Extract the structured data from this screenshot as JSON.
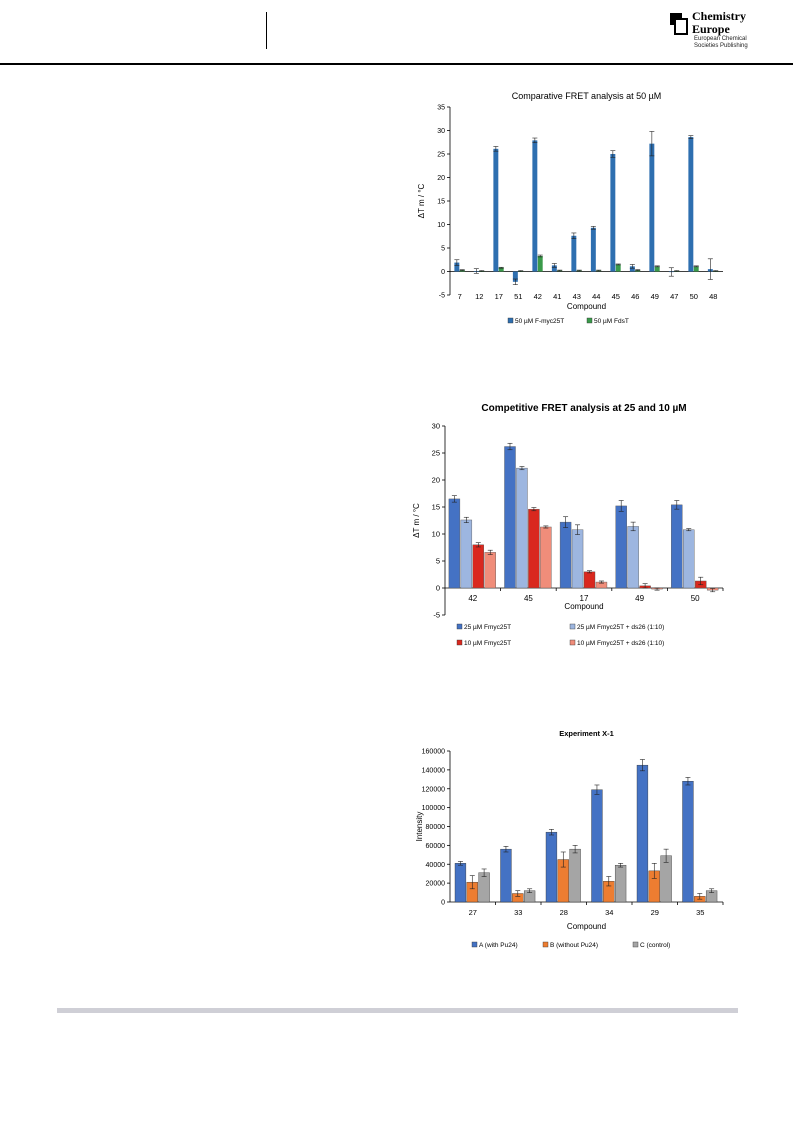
{
  "header": {
    "logo_line1": "Chemistry",
    "logo_line2": "Europe",
    "logo_sub1": "European Chemical",
    "logo_sub2": "Societies Publishing"
  },
  "chart_data": [
    {
      "type": "bar",
      "title": "Comparative FRET analysis at 50 µM",
      "xlabel": "Compound",
      "ylabel": "ΔT m / °C",
      "ylim": [
        -5,
        35
      ],
      "yticks": [
        -5,
        0,
        5,
        10,
        15,
        20,
        25,
        30,
        35
      ],
      "grid": false,
      "legend": "bottom",
      "categories": [
        "7",
        "12",
        "17",
        "51",
        "42",
        "41",
        "43",
        "44",
        "45",
        "46",
        "49",
        "47",
        "50",
        "48"
      ],
      "series": [
        {
          "name": "50 µM F-myc25T",
          "color": "#2e6fb0",
          "values": [
            1.9,
            0.1,
            26.1,
            -2.2,
            27.9,
            1.3,
            7.6,
            9.3,
            25.0,
            1.1,
            27.2,
            -0.1,
            28.6,
            0.5
          ],
          "errors": [
            0.6,
            0.5,
            0.5,
            0.6,
            0.5,
            0.4,
            0.6,
            0.3,
            0.7,
            0.4,
            2.6,
            0.9,
            0.3,
            2.2
          ]
        },
        {
          "name": "50 µM FdsT",
          "color": "#3a9a4a",
          "values": [
            0.3,
            0.1,
            0.8,
            0.1,
            3.3,
            0.2,
            0.2,
            0.2,
            1.5,
            0.3,
            1.1,
            0.1,
            1.1,
            0.1
          ],
          "errors": [
            0.1,
            0.1,
            0.1,
            0.1,
            0.2,
            0.1,
            0.1,
            0.1,
            0.1,
            0.1,
            0.1,
            0.1,
            0.1,
            0.1
          ]
        }
      ]
    },
    {
      "type": "bar",
      "title": "Competitive FRET analysis at 25 and 10 µM",
      "xlabel": "Compound",
      "ylabel": "ΔT m / °C",
      "ylim": [
        -5,
        30
      ],
      "yticks": [
        -5,
        0,
        5,
        10,
        15,
        20,
        25,
        30
      ],
      "grid": false,
      "legend": "bottom",
      "categories": [
        "42",
        "45",
        "17",
        "49",
        "50"
      ],
      "series": [
        {
          "name": "25 µM Fmyc25T",
          "color": "#4472c4",
          "values": [
            16.5,
            26.2,
            12.2,
            15.2,
            15.4
          ],
          "errors": [
            0.6,
            0.6,
            1.0,
            1.0,
            0.8
          ]
        },
        {
          "name": "25 µM Fmyc25T + ds26 (1:10)",
          "color": "#9db6e0",
          "values": [
            12.6,
            22.2,
            10.8,
            11.4,
            10.8
          ],
          "errors": [
            0.5,
            0.3,
            0.9,
            0.8,
            0.2
          ]
        },
        {
          "name": "10 µM Fmyc25T",
          "color": "#d9281e",
          "values": [
            8.0,
            14.6,
            3.0,
            0.4,
            1.3
          ],
          "errors": [
            0.4,
            0.3,
            0.2,
            0.4,
            0.7
          ]
        },
        {
          "name": "10 µM Fmyc25T + ds26 (1:10)",
          "color": "#f08d7a",
          "values": [
            6.6,
            11.3,
            1.1,
            -0.2,
            -0.4
          ],
          "errors": [
            0.4,
            0.2,
            0.2,
            0.2,
            0.3
          ]
        }
      ]
    },
    {
      "type": "bar",
      "title": "Experiment X-1",
      "xlabel": "Compound",
      "ylabel": "Intensity",
      "ylim": [
        0,
        160000
      ],
      "yticks": [
        0,
        20000,
        40000,
        60000,
        80000,
        100000,
        120000,
        140000,
        160000
      ],
      "grid": false,
      "legend": "bottom",
      "categories": [
        "27",
        "33",
        "28",
        "34",
        "29",
        "35"
      ],
      "series": [
        {
          "name": "A (with Pu24)",
          "color": "#4472c4",
          "values": [
            41000,
            56000,
            74000,
            119000,
            145000,
            128000
          ],
          "errors": [
            2000,
            3000,
            3000,
            5000,
            6000,
            4000
          ]
        },
        {
          "name": "B (without Pu24)",
          "color": "#ed7d31",
          "values": [
            21000,
            9000,
            45000,
            22000,
            33000,
            6000
          ],
          "errors": [
            7000,
            3000,
            8000,
            5000,
            8000,
            3000
          ]
        },
        {
          "name": "C (control)",
          "color": "#a5a5a5",
          "values": [
            31000,
            12000,
            56000,
            39000,
            49000,
            12000
          ],
          "errors": [
            4000,
            2000,
            4000,
            2000,
            7000,
            2000
          ]
        }
      ]
    }
  ]
}
